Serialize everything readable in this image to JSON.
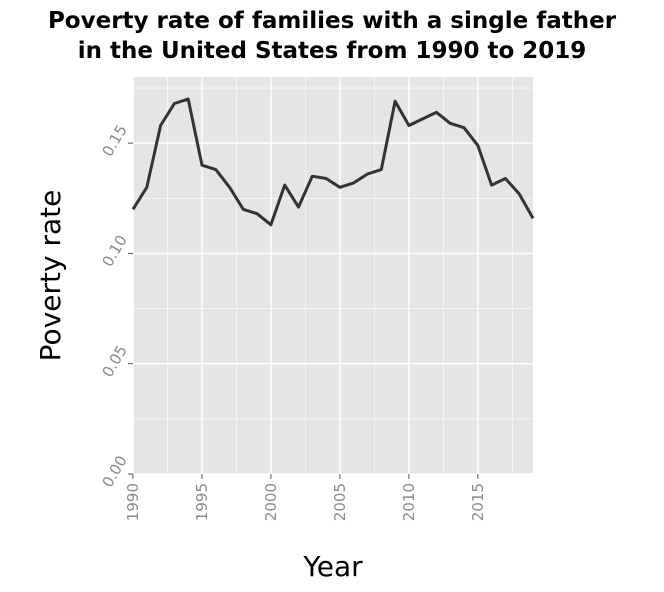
{
  "chart_data": {
    "type": "line",
    "title_lines": [
      "Poverty rate of families with a single father",
      "in the United States from 1990 to 2019"
    ],
    "xlabel": "Year",
    "ylabel": "Poverty rate",
    "xlim": [
      1990,
      2019
    ],
    "ylim": [
      0.0,
      0.18
    ],
    "x_ticks": [
      1990,
      1995,
      2000,
      2005,
      2010,
      2015
    ],
    "x_tick_labels": [
      "1990",
      "1995",
      "2000",
      "2005",
      "2010",
      "2015"
    ],
    "y_ticks": [
      0.0,
      0.05,
      0.1,
      0.15
    ],
    "y_tick_labels": [
      "0.00",
      "0.05",
      "0.10",
      "0.15"
    ],
    "grid": true,
    "legend": "none",
    "series": [
      {
        "x": [
          1990,
          1991,
          1992,
          1993,
          1994,
          1995,
          1996,
          1997,
          1998,
          1999,
          2000,
          2001,
          2002,
          2003,
          2004,
          2005,
          2006,
          2007,
          2008,
          2009,
          2010,
          2011,
          2012,
          2013,
          2014,
          2015,
          2016,
          2017,
          2018,
          2019
        ],
        "values": [
          0.12,
          0.13,
          0.158,
          0.168,
          0.17,
          0.14,
          0.138,
          0.13,
          0.12,
          0.118,
          0.113,
          0.131,
          0.121,
          0.135,
          0.134,
          0.13,
          0.132,
          0.136,
          0.138,
          0.169,
          0.158,
          0.161,
          0.164,
          0.159,
          0.157,
          0.149,
          0.131,
          0.134,
          0.127,
          0.116
        ]
      }
    ]
  },
  "colors": {
    "panel_background": "#e5e5e5",
    "grid": "#ffffff",
    "line": "#333333",
    "tick_label": "#8a8a8a"
  }
}
